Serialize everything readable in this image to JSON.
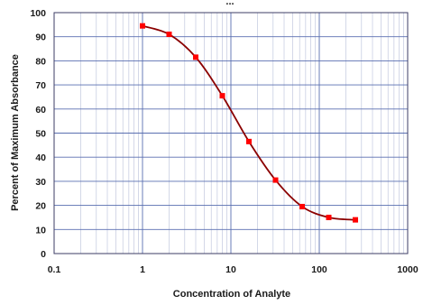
{
  "chart_data": {
    "type": "line",
    "title": "...",
    "xlabel": "Concentration of Analyte",
    "ylabel": "Percent of Maximum Absorbance",
    "x_scale": "log",
    "xlim": [
      0.1,
      1000
    ],
    "ylim": [
      0,
      100
    ],
    "x_ticks": [
      0.1,
      1,
      10,
      100,
      1000
    ],
    "x_tick_labels": [
      "0.1",
      "1",
      "10",
      "100",
      "1000"
    ],
    "y_ticks": [
      0,
      10,
      20,
      30,
      40,
      50,
      60,
      70,
      80,
      90,
      100
    ],
    "y_tick_labels": [
      "0",
      "10",
      "20",
      "30",
      "40",
      "50",
      "60",
      "70",
      "80",
      "90",
      "100"
    ],
    "grid": true,
    "colors": {
      "major_grid": "#5a6fb0",
      "minor_grid": "#c9cfe3",
      "curve": "#8b0000",
      "marker": "#ff0000"
    },
    "series": [
      {
        "x": [
          1,
          2,
          4,
          8,
          16,
          32,
          64,
          128,
          256
        ],
        "y": [
          94.5,
          91,
          81.5,
          65.5,
          46.5,
          30.5,
          19.5,
          15,
          14
        ]
      }
    ]
  }
}
